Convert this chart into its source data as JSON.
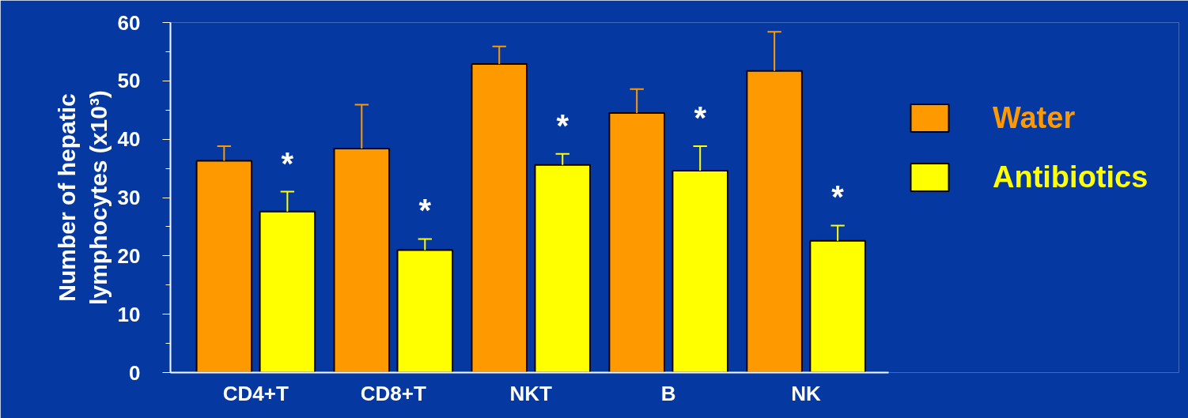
{
  "chart_data": {
    "type": "bar",
    "ylabel": "Number of hepatic\nlymphocytes (x10³)",
    "categories": [
      "CD4+T",
      "CD8+T",
      "NKT",
      "B",
      "NK"
    ],
    "series": [
      {
        "name": "Water",
        "color": "#ff9900",
        "values": [
          36.3,
          38.4,
          52.9,
          44.5,
          51.7
        ],
        "errors": [
          [
            36.3,
            38.8
          ],
          [
            38.4,
            45.9
          ],
          [
            52.9,
            55.9
          ],
          [
            44.5,
            48.6
          ],
          [
            51.7,
            58.4
          ]
        ]
      },
      {
        "name": "Antibiotics",
        "color": "#ffff00",
        "values": [
          27.6,
          21.0,
          35.6,
          34.6,
          22.6
        ],
        "errors": [
          [
            27.6,
            31.0
          ],
          [
            21.0,
            22.9
          ],
          [
            35.6,
            37.5
          ],
          [
            34.6,
            38.8
          ],
          [
            22.6,
            25.2
          ]
        ]
      }
    ],
    "annotations": [
      "*",
      "*",
      "*",
      "*",
      "*"
    ],
    "ylim": [
      0,
      60
    ],
    "yticks": [
      0,
      10,
      20,
      30,
      40,
      50,
      60
    ],
    "grid": false,
    "legend": "right"
  }
}
